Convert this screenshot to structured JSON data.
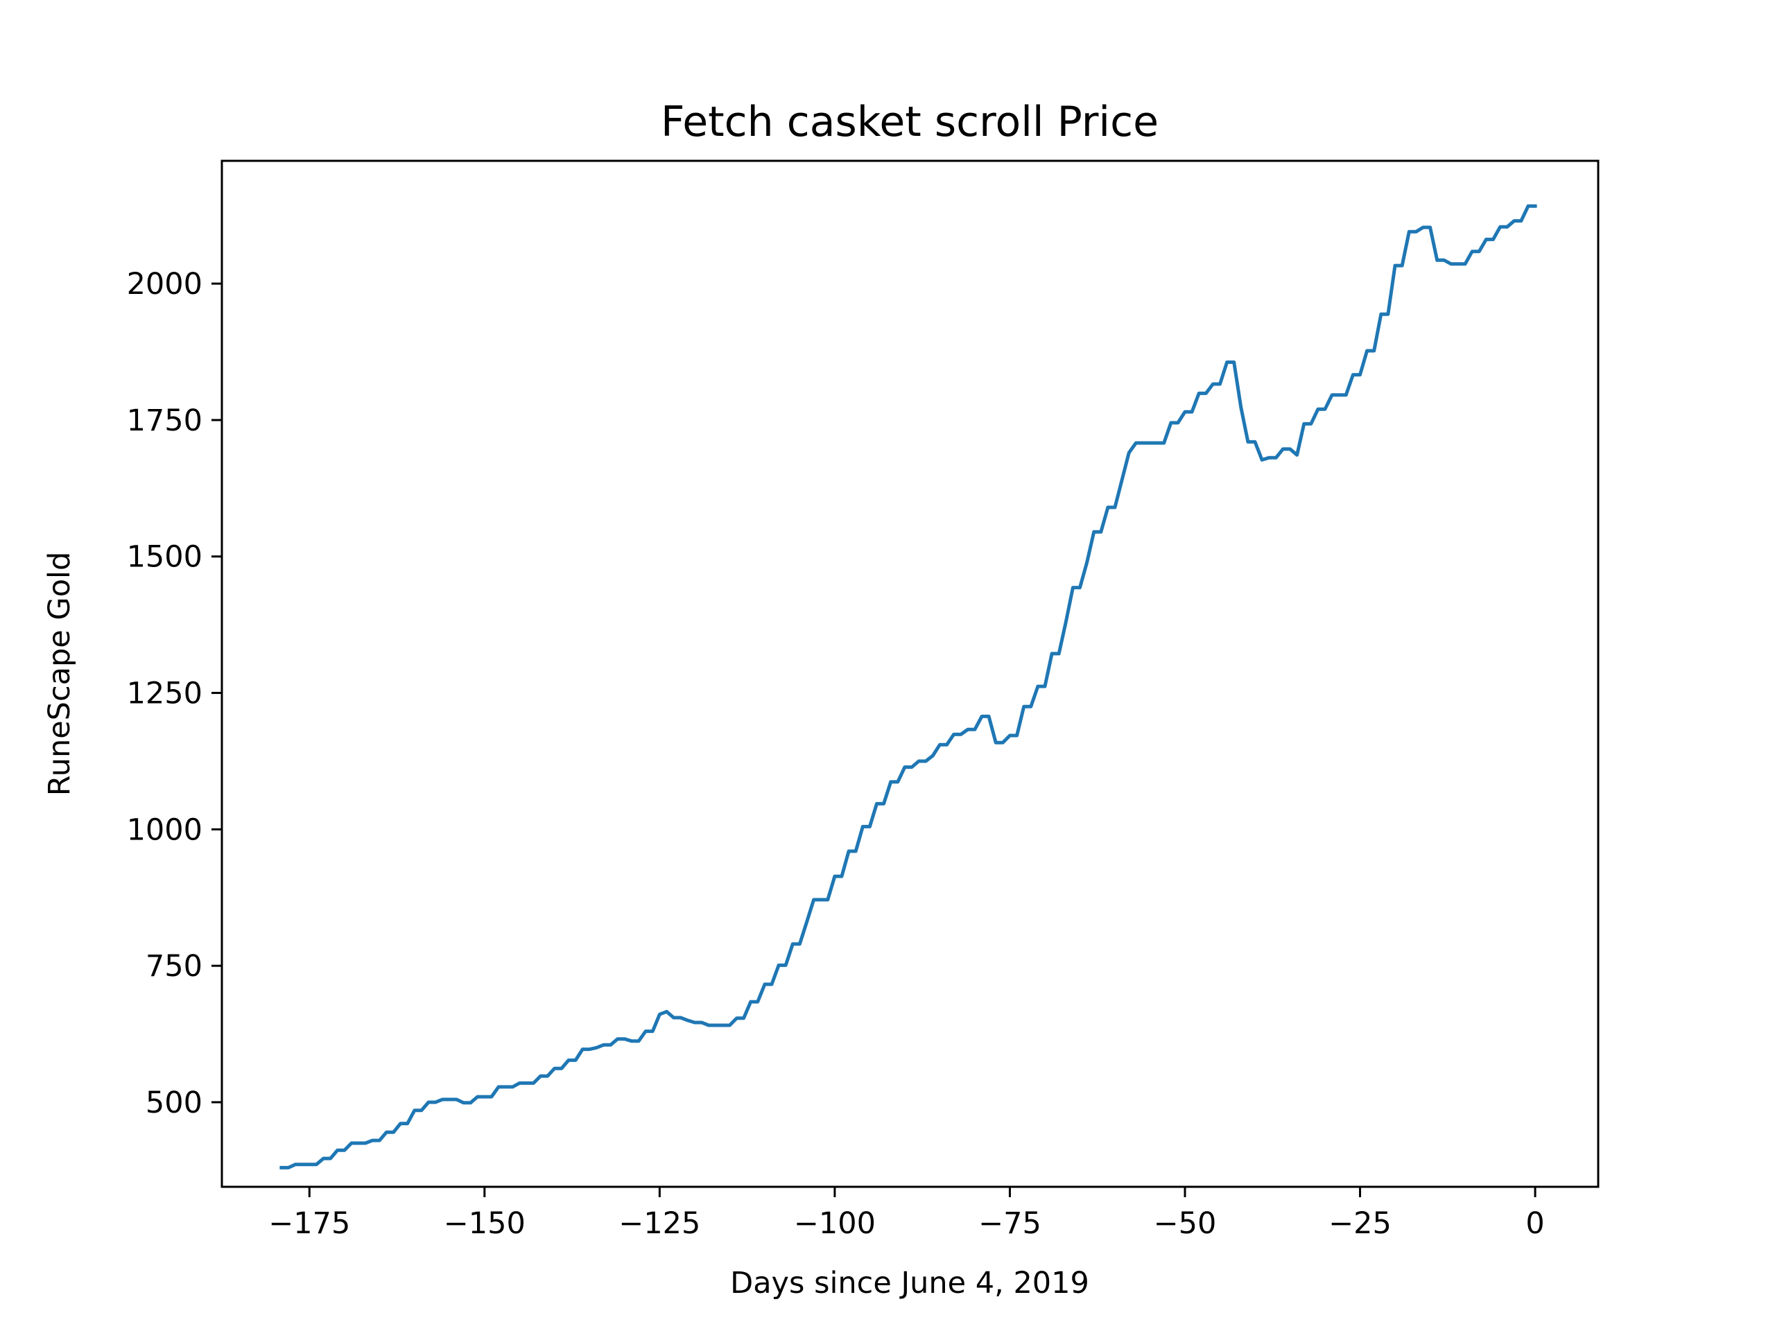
{
  "chart_data": {
    "type": "line",
    "title": "Fetch casket scroll Price",
    "xlabel": "Days since June 4, 2019",
    "ylabel": "RuneScape Gold",
    "xlim": [
      -187.5,
      9
    ],
    "ylim": [
      345,
      2225
    ],
    "xticks": [
      -175,
      -150,
      -125,
      -100,
      -75,
      -50,
      -25,
      0
    ],
    "yticks": [
      500,
      750,
      1000,
      1250,
      1500,
      1750,
      2000
    ],
    "grid": false,
    "line_color": "#1f77b4",
    "series": [
      {
        "points": [
          [
            -179,
            380
          ],
          [
            -178,
            380
          ],
          [
            -177,
            386
          ],
          [
            -176,
            386
          ],
          [
            -175,
            386
          ],
          [
            -174,
            386
          ],
          [
            -173,
            397
          ],
          [
            -172,
            397
          ],
          [
            -171,
            412
          ],
          [
            -170,
            412
          ],
          [
            -169,
            425
          ],
          [
            -168,
            425
          ],
          [
            -167,
            425
          ],
          [
            -166,
            430
          ],
          [
            -165,
            430
          ],
          [
            -164,
            445
          ],
          [
            -163,
            445
          ],
          [
            -162,
            461
          ],
          [
            -161,
            461
          ],
          [
            -160,
            485
          ],
          [
            -159,
            485
          ],
          [
            -158,
            500
          ],
          [
            -157,
            500
          ],
          [
            -156,
            505
          ],
          [
            -155,
            505
          ],
          [
            -154,
            505
          ],
          [
            -153,
            499
          ],
          [
            -152,
            499
          ],
          [
            -151,
            510
          ],
          [
            -150,
            510
          ],
          [
            -149,
            510
          ],
          [
            -148,
            528
          ],
          [
            -147,
            528
          ],
          [
            -146,
            528
          ],
          [
            -145,
            535
          ],
          [
            -144,
            535
          ],
          [
            -143,
            535
          ],
          [
            -142,
            548
          ],
          [
            -141,
            548
          ],
          [
            -140,
            562
          ],
          [
            -139,
            562
          ],
          [
            -138,
            577
          ],
          [
            -137,
            577
          ],
          [
            -136,
            597
          ],
          [
            -135,
            597
          ],
          [
            -134,
            600
          ],
          [
            -133,
            605
          ],
          [
            -132,
            605
          ],
          [
            -131,
            616
          ],
          [
            -130,
            616
          ],
          [
            -129,
            612
          ],
          [
            -128,
            612
          ],
          [
            -127,
            630
          ],
          [
            -126,
            630
          ],
          [
            -125,
            661
          ],
          [
            -124,
            666
          ],
          [
            -123,
            655
          ],
          [
            -122,
            655
          ],
          [
            -121,
            650
          ],
          [
            -120,
            646
          ],
          [
            -119,
            646
          ],
          [
            -118,
            641
          ],
          [
            -117,
            641
          ],
          [
            -116,
            641
          ],
          [
            -115,
            641
          ],
          [
            -114,
            654
          ],
          [
            -113,
            654
          ],
          [
            -112,
            684
          ],
          [
            -111,
            684
          ],
          [
            -110,
            716
          ],
          [
            -109,
            716
          ],
          [
            -108,
            751
          ],
          [
            -107,
            751
          ],
          [
            -106,
            790
          ],
          [
            -105,
            790
          ],
          [
            -104,
            830
          ],
          [
            -103,
            871
          ],
          [
            -102,
            871
          ],
          [
            -101,
            871
          ],
          [
            -100,
            914
          ],
          [
            -99,
            914
          ],
          [
            -98,
            960
          ],
          [
            -97,
            960
          ],
          [
            -96,
            1005
          ],
          [
            -95,
            1005
          ],
          [
            -94,
            1047
          ],
          [
            -93,
            1047
          ],
          [
            -92,
            1087
          ],
          [
            -91,
            1087
          ],
          [
            -90,
            1114
          ],
          [
            -89,
            1114
          ],
          [
            -88,
            1125
          ],
          [
            -87,
            1125
          ],
          [
            -86,
            1135
          ],
          [
            -85,
            1155
          ],
          [
            -84,
            1155
          ],
          [
            -83,
            1174
          ],
          [
            -82,
            1174
          ],
          [
            -81,
            1183
          ],
          [
            -80,
            1183
          ],
          [
            -79,
            1207
          ],
          [
            -78,
            1207
          ],
          [
            -77,
            1159
          ],
          [
            -76,
            1159
          ],
          [
            -75,
            1172
          ],
          [
            -74,
            1172
          ],
          [
            -73,
            1225
          ],
          [
            -72,
            1225
          ],
          [
            -71,
            1262
          ],
          [
            -70,
            1262
          ],
          [
            -69,
            1322
          ],
          [
            -68,
            1322
          ],
          [
            -67,
            1380
          ],
          [
            -66,
            1443
          ],
          [
            -65,
            1443
          ],
          [
            -64,
            1489
          ],
          [
            -63,
            1545
          ],
          [
            -62,
            1545
          ],
          [
            -61,
            1590
          ],
          [
            -60,
            1590
          ],
          [
            -59,
            1640
          ],
          [
            -58,
            1690
          ],
          [
            -57,
            1708
          ],
          [
            -56,
            1708
          ],
          [
            -55,
            1708
          ],
          [
            -54,
            1708
          ],
          [
            -53,
            1708
          ],
          [
            -52,
            1745
          ],
          [
            -51,
            1745
          ],
          [
            -50,
            1765
          ],
          [
            -49,
            1765
          ],
          [
            -48,
            1799
          ],
          [
            -47,
            1799
          ],
          [
            -46,
            1816
          ],
          [
            -45,
            1816
          ],
          [
            -44,
            1856
          ],
          [
            -43,
            1856
          ],
          [
            -42,
            1773
          ],
          [
            -41,
            1710
          ],
          [
            -40,
            1710
          ],
          [
            -39,
            1677
          ],
          [
            -38,
            1681
          ],
          [
            -37,
            1681
          ],
          [
            -36,
            1697
          ],
          [
            -35,
            1697
          ],
          [
            -34,
            1686
          ],
          [
            -33,
            1743
          ],
          [
            -32,
            1743
          ],
          [
            -31,
            1770
          ],
          [
            -30,
            1770
          ],
          [
            -29,
            1796
          ],
          [
            -28,
            1796
          ],
          [
            -27,
            1796
          ],
          [
            -26,
            1833
          ],
          [
            -25,
            1833
          ],
          [
            -24,
            1877
          ],
          [
            -23,
            1877
          ],
          [
            -22,
            1944
          ],
          [
            -21,
            1944
          ],
          [
            -20,
            2033
          ],
          [
            -19,
            2033
          ],
          [
            -18,
            2095
          ],
          [
            -17,
            2095
          ],
          [
            -16,
            2103
          ],
          [
            -15,
            2103
          ],
          [
            -14,
            2043
          ],
          [
            -13,
            2043
          ],
          [
            -12,
            2036
          ],
          [
            -11,
            2036
          ],
          [
            -10,
            2036
          ],
          [
            -9,
            2059
          ],
          [
            -8,
            2059
          ],
          [
            -7,
            2081
          ],
          [
            -6,
            2081
          ],
          [
            -5,
            2104
          ],
          [
            -4,
            2104
          ],
          [
            -3,
            2115
          ],
          [
            -2,
            2115
          ],
          [
            -1,
            2142
          ],
          [
            0,
            2142
          ]
        ]
      }
    ]
  }
}
